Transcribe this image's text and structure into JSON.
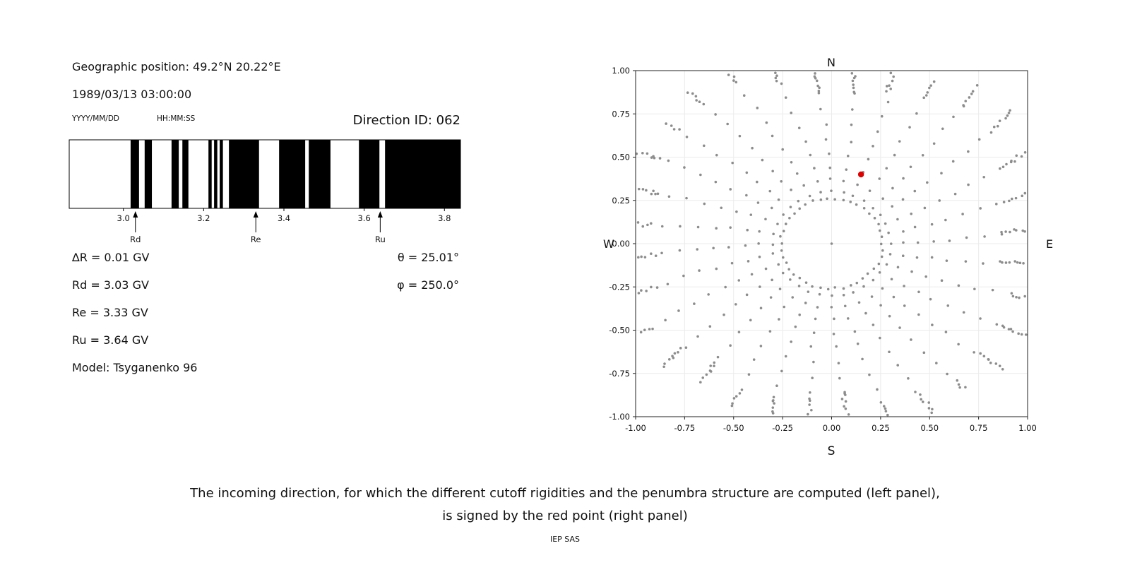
{
  "header": {
    "geo_position": "Geographic position: 49.2°N 20.22°E",
    "datetime": "1989/03/13 03:00:00",
    "date_format_label": "YYYY/MM/DD",
    "time_format_label": "HH:MM:SS",
    "direction_id_label": "Direction ID: 062"
  },
  "results": {
    "delta_r": "∆R = 0.01 GV",
    "rd": "Rd = 3.03 GV",
    "re": "Re = 3.33 GV",
    "ru": "Ru = 3.64 GV",
    "model": "Model: Tsyganenko 96",
    "theta": "θ = 25.01°",
    "phi": "φ = 250.0°"
  },
  "caption": {
    "line1": "The incoming direction, for which the different cutoff rigidities and the penumbra structure are computed (left panel),",
    "line2": "is signed by the red point (right panel)",
    "credit": "IEP SAS"
  },
  "chart_data": [
    {
      "type": "bar",
      "name": "penumbra-structure",
      "title": "",
      "xlabel": "",
      "xlim": [
        2.865,
        3.84
      ],
      "xticks": [
        3.0,
        3.2,
        3.4,
        3.6,
        3.8
      ],
      "tick_decimals": 1,
      "bar_color": "#000000",
      "background": "#ffffff",
      "forbidden_bands_GV": [
        [
          3.018,
          3.039
        ],
        [
          3.053,
          3.071
        ],
        [
          3.12,
          3.138
        ],
        [
          3.147,
          3.162
        ],
        [
          3.212,
          3.22
        ],
        [
          3.226,
          3.234
        ],
        [
          3.24,
          3.248
        ],
        [
          3.263,
          3.338
        ],
        [
          3.388,
          3.453
        ],
        [
          3.462,
          3.516
        ],
        [
          3.587,
          3.638
        ],
        [
          3.652,
          3.84
        ]
      ],
      "markers": [
        {
          "label": "Rd",
          "x_GV": 3.03
        },
        {
          "label": "Re",
          "x_GV": 3.33
        },
        {
          "label": "Ru",
          "x_GV": 3.64
        }
      ],
      "values": {
        "delta_R_GV": 0.01,
        "Rd_GV": 3.03,
        "Re_GV": 3.33,
        "Ru_GV": 3.64,
        "theta_deg": 25.01,
        "phi_deg": 250.0,
        "direction_id": "062",
        "model": "Tsyganenko 96"
      }
    },
    {
      "type": "scatter",
      "name": "incoming-directions-map",
      "xlim": [
        -1,
        1
      ],
      "ylim": [
        -1,
        1
      ],
      "xticks": [
        -1.0,
        -0.75,
        -0.5,
        -0.25,
        0.0,
        0.25,
        0.5,
        0.75,
        1.0
      ],
      "yticks": [
        -1.0,
        -0.75,
        -0.5,
        -0.25,
        0.0,
        0.25,
        0.5,
        0.75,
        1.0
      ],
      "tick_decimals": 2,
      "grid": true,
      "grid_color": "#ebebeb",
      "compass": {
        "top": "N",
        "bottom": "S",
        "left": "W",
        "right": "E"
      },
      "point_color": "#8c8c8c",
      "red_point": {
        "x": 0.15,
        "y": 0.4,
        "color": "#e00000"
      },
      "center_point": {
        "x": 0,
        "y": 0
      },
      "inner_ring": {
        "radius": 0.26,
        "count": 42
      },
      "spokes": {
        "count": 32,
        "start_angle_deg": 0,
        "step_deg": 11.25,
        "inner_radius": 0.3,
        "body_radii": [
          0.3,
          0.37,
          0.44,
          0.52,
          0.6,
          0.69,
          0.78,
          0.87,
          0.96,
          1.04
        ],
        "tip_cluster_min": 4,
        "tip_cluster_var": 4,
        "tip_spacing": 0.014,
        "max_radius": 1.2,
        "curvature_rad_per_unit": 0.12
      }
    }
  ]
}
